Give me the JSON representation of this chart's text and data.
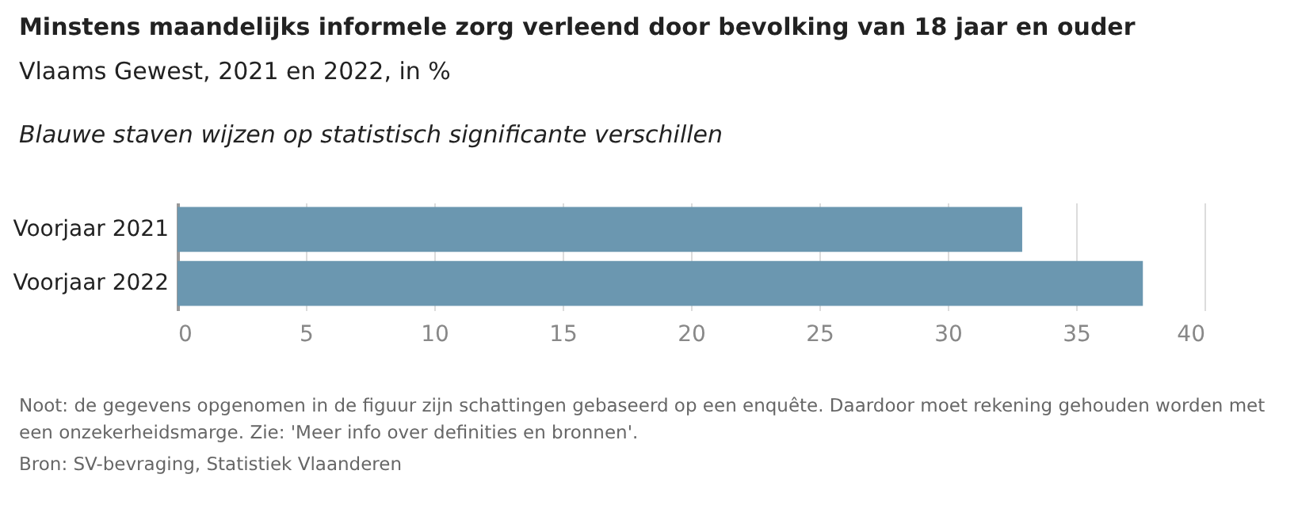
{
  "chart_data": {
    "type": "bar",
    "orientation": "horizontal",
    "title": "Minstens maandelijks informele zorg verleend door bevolking van 18 jaar en ouder",
    "subtitle": "Vlaams Gewest, 2021 en 2022, in %",
    "annotations": [
      "Blauwe staven wijzen op statistisch significante verschillen",
      "Noot: de gegevens opgenomen in de figuur zijn schattingen gebaseerd op een enquête. Daardoor moet rekening gehouden worden met een onzekerheidsmarge. Zie: 'Meer info over definities en bronnen'.",
      "Bron: SV-bevraging, Statistiek Vlaanderen"
    ],
    "categories": [
      "Voorjaar 2021",
      "Voorjaar 2022"
    ],
    "values": [
      32.9,
      37.6
    ],
    "color": "#6b97b0",
    "xlim": [
      0,
      40
    ],
    "xticks": [
      0,
      5,
      10,
      15,
      20,
      25,
      30,
      35,
      40
    ],
    "grid": "x"
  }
}
